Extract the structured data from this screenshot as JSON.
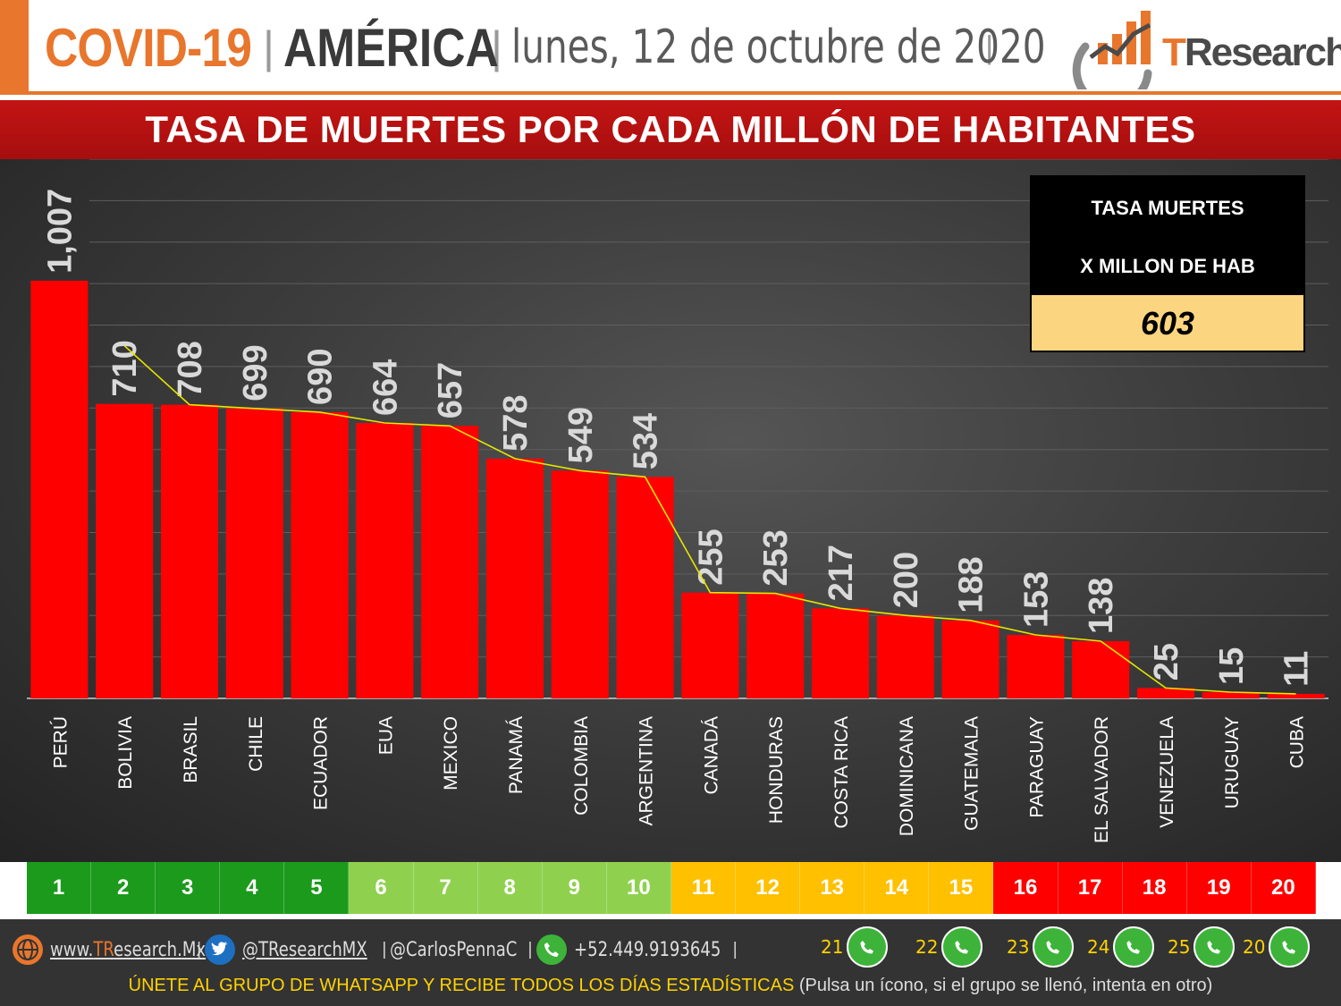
{
  "header": {
    "covid": "COVID-19",
    "sep1": "|",
    "region": "AMÉRICA",
    "sep2": "|",
    "date": "lunes, 12 de octubre de 2020",
    "sep3": "|"
  },
  "logo": {
    "t": "T",
    "rest": "Research"
  },
  "title": "TASA DE MUERTES POR CADA MILLÓN DE HABITANTES",
  "summary": {
    "line1": "TASA MUERTES",
    "line2": "X MILLON DE HAB",
    "value": "603"
  },
  "chart_data": {
    "type": "bar",
    "title": "TASA DE MUERTES POR CADA MILLÓN DE HABITANTES",
    "categories": [
      "PERÚ",
      "BOLIVIA",
      "BRASIL",
      "CHILE",
      "ECUADOR",
      "EUA",
      "MEXICO",
      "PANAMÁ",
      "COLOMBIA",
      "ARGENTINA",
      "CANADÁ",
      "HONDURAS",
      "COSTA RICA",
      "DOMINICANA",
      "GUATEMALA",
      "PARAGUAY",
      "EL SALVADOR",
      "VENEZUELA",
      "URUGUAY",
      "CUBA"
    ],
    "series": [
      {
        "values": [
          1007,
          710,
          708,
          699,
          690,
          664,
          657,
          578,
          549,
          534,
          255,
          253,
          217,
          200,
          188,
          153,
          138,
          25,
          15,
          11
        ]
      }
    ],
    "value_labels": [
      "1,007",
      "710",
      "708",
      "699",
      "690",
      "664",
      "657",
      "578",
      "549",
      "534",
      "255",
      "253",
      "217",
      "200",
      "188",
      "153",
      "138",
      "25",
      "15",
      "11"
    ],
    "trend_line": {
      "from_index": 1,
      "color": "#e6e600"
    },
    "ylim": [
      0,
      1300
    ],
    "grid": true,
    "bar_color": "#ff0000"
  },
  "ranks": {
    "items": [
      "1",
      "2",
      "3",
      "4",
      "5",
      "6",
      "7",
      "8",
      "9",
      "10",
      "11",
      "12",
      "13",
      "14",
      "15",
      "16",
      "17",
      "18",
      "19",
      "20"
    ],
    "colors": [
      "#1c9a1c",
      "#1c9a1c",
      "#1c9a1c",
      "#1c9a1c",
      "#1c9a1c",
      "#8fd14f",
      "#8fd14f",
      "#8fd14f",
      "#8fd14f",
      "#8fd14f",
      "#ffc000",
      "#ffc000",
      "#ffc000",
      "#ffc000",
      "#ffc000",
      "#ff0000",
      "#ff0000",
      "#ff0000",
      "#ff0000",
      "#ff0000"
    ],
    "text_colors": [
      "#ffffff",
      "#ffffff",
      "#ffffff",
      "#ffffff",
      "#ffffff",
      "#ffffff",
      "#ffffff",
      "#ffffff",
      "#ffffff",
      "#ffffff",
      "#ffffff",
      "#ffffff",
      "#ffffff",
      "#ffffff",
      "#ffffff",
      "#ffffff",
      "#ffffff",
      "#ffffff",
      "#ffffff",
      "#ffffff"
    ]
  },
  "footer": {
    "web_prefix": "www.",
    "web_t": "TR",
    "web_rest": "esearch.Mx",
    "twitter": "@TResearchMX",
    "instagram": "@CarlosPennaC",
    "phone": "+52.449.9193645",
    "sep": "|",
    "whatsapp_groups": [
      "21",
      "22",
      "23",
      "24",
      "25",
      "20"
    ],
    "cta": "ÚNETE AL GRUPO DE WHATSAPP Y RECIBE TODOS LOS DÍAS ESTADÍSTICAS",
    "hint": "(Pulsa un ícono, si el grupo se llenó, intenta en otro)"
  }
}
